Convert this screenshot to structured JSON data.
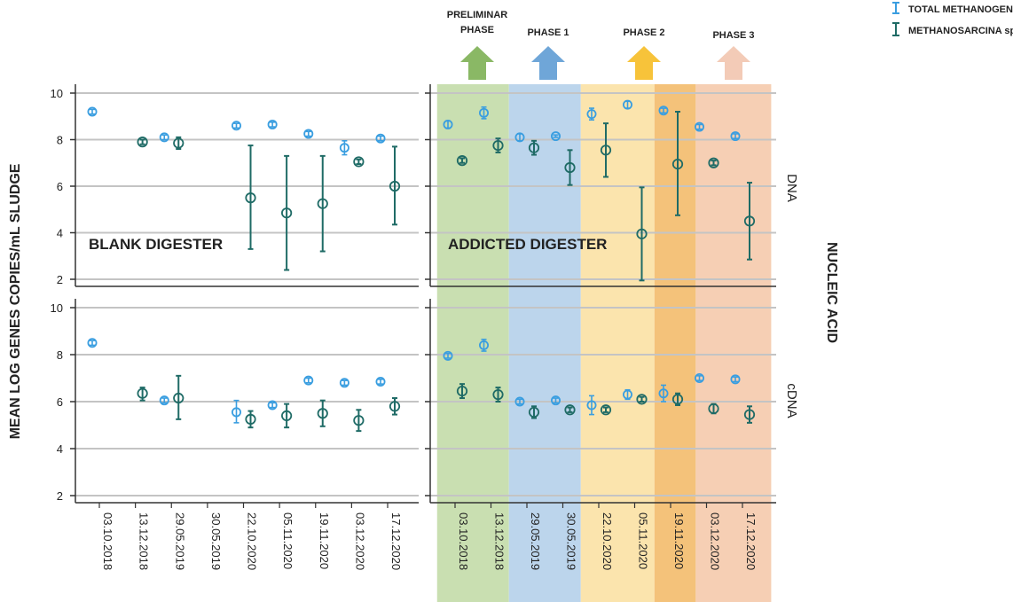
{
  "colors": {
    "total_methanogens": "#3a9ee0",
    "methanosarcina": "#1f6b66",
    "preliminar": "#c9dfb1",
    "phase1": "#bcd5ec",
    "phase2": "#fbe4ad",
    "phase2b": "#f4c27a",
    "phase3": "#f6cfb4",
    "arrow_preliminar": "#8ab865",
    "arrow_phase1": "#6fa6d8",
    "arrow_phase2": "#f7c33a",
    "arrow_phase3": "#f3cbb7"
  },
  "legend": {
    "total_methanogens": "TOTAL METHANOGENS",
    "methanosarcina": "METHANOSARCINA spp."
  },
  "phases": {
    "preliminar_line1": "PRELIMINAR",
    "preliminar_line2": "PHASE",
    "phase1": "PHASE 1",
    "phase2": "PHASE 2",
    "phase3": "PHASE 3"
  },
  "panel_labels": {
    "blank": "BLANK DIGESTER",
    "addicted": "ADDICTED DIGESTER"
  },
  "strip_labels": {
    "dna": "DNA",
    "cdna": "cDNA"
  },
  "axis": {
    "y_title": "MEAN LOG GENES COPIES/mL SLUDGE",
    "right_title": "NUCLEIC ACID"
  },
  "chart_data": {
    "type": "scatter",
    "subtype": "error-bar panel plot",
    "ylim": [
      2,
      10
    ],
    "yticks": [
      2,
      4,
      6,
      8,
      10
    ],
    "x_dates": [
      "03.10.2018",
      "13.12.2018",
      "29.05.2019",
      "30.05.2019",
      "22.10.2020",
      "05.11.2020",
      "19.11.2020",
      "03.12.2020",
      "17.12.2020"
    ],
    "panels": [
      {
        "column": "BLANK DIGESTER",
        "row": "DNA",
        "series": [
          {
            "name": "TOTAL METHANOGENS",
            "x": [
              "03.10.2018",
              "29.05.2019",
              "22.10.2020",
              "05.11.2020",
              "19.11.2020",
              "03.12.2020",
              "17.12.2020"
            ],
            "mean": [
              9.2,
              8.1,
              8.6,
              8.65,
              8.25,
              7.65,
              8.05
            ],
            "low": [
              9.1,
              8.0,
              8.5,
              8.55,
              8.15,
              7.35,
              7.95
            ],
            "high": [
              9.3,
              8.2,
              8.7,
              8.75,
              8.35,
              7.95,
              8.15
            ]
          },
          {
            "name": "METHANOSARCINA spp.",
            "x": [
              "13.12.2018",
              "29.05.2019",
              "22.10.2020",
              "05.11.2020",
              "19.11.2020",
              "03.12.2020",
              "17.12.2020"
            ],
            "mean": [
              7.9,
              7.85,
              5.5,
              4.85,
              5.25,
              7.05,
              6.0
            ],
            "low": [
              7.8,
              7.6,
              3.3,
              2.4,
              3.2,
              6.95,
              4.35
            ],
            "high": [
              8.0,
              8.1,
              7.75,
              7.3,
              7.3,
              7.15,
              7.7
            ]
          }
        ]
      },
      {
        "column": "ADDICTED DIGESTER",
        "row": "DNA",
        "series": [
          {
            "name": "TOTAL METHANOGENS",
            "x": [
              "03.10.2018",
              "13.12.2018",
              "29.05.2019",
              "30.05.2019",
              "22.10.2020",
              "05.11.2020",
              "19.11.2020",
              "03.12.2020",
              "17.12.2020"
            ],
            "mean": [
              8.65,
              9.15,
              8.1,
              8.15,
              9.1,
              9.5,
              9.25,
              8.55,
              8.15
            ],
            "low": [
              8.5,
              8.9,
              7.95,
              8.1,
              8.85,
              9.35,
              9.15,
              8.45,
              8.05
            ],
            "high": [
              8.8,
              9.4,
              8.25,
              8.2,
              9.35,
              9.65,
              9.35,
              8.65,
              8.25
            ]
          },
          {
            "name": "METHANOSARCINA spp.",
            "x": [
              "03.10.2018",
              "13.12.2018",
              "29.05.2019",
              "30.05.2019",
              "22.10.2020",
              "05.11.2020",
              "19.11.2020",
              "03.12.2020",
              "17.12.2020"
            ],
            "mean": [
              7.1,
              7.75,
              7.65,
              6.8,
              7.55,
              3.95,
              6.95,
              7.0,
              4.5
            ],
            "low": [
              7.0,
              7.45,
              7.35,
              6.05,
              6.4,
              1.95,
              4.75,
              6.9,
              2.85
            ],
            "high": [
              7.2,
              8.05,
              7.95,
              7.55,
              8.7,
              5.95,
              9.2,
              7.1,
              6.15
            ]
          }
        ]
      },
      {
        "column": "BLANK DIGESTER",
        "row": "cDNA",
        "series": [
          {
            "name": "TOTAL METHANOGENS",
            "x": [
              "03.10.2018",
              "29.05.2019",
              "22.10.2020",
              "05.11.2020",
              "19.11.2020",
              "03.12.2020",
              "17.12.2020"
            ],
            "mean": [
              8.5,
              6.05,
              5.55,
              5.85,
              6.9,
              6.8,
              6.85
            ],
            "low": [
              8.4,
              5.95,
              5.1,
              5.75,
              6.8,
              6.7,
              6.75
            ],
            "high": [
              8.6,
              6.15,
              6.05,
              5.95,
              7.0,
              6.9,
              6.95
            ]
          },
          {
            "name": "METHANOSARCINA spp.",
            "x": [
              "13.12.2018",
              "29.05.2019",
              "22.10.2020",
              "05.11.2020",
              "19.11.2020",
              "03.12.2020",
              "17.12.2020"
            ],
            "mean": [
              6.35,
              6.15,
              5.25,
              5.4,
              5.5,
              5.2,
              5.8
            ],
            "low": [
              6.05,
              5.25,
              4.9,
              4.9,
              4.95,
              4.75,
              5.45
            ],
            "high": [
              6.6,
              7.1,
              5.6,
              5.9,
              6.05,
              5.65,
              6.15
            ]
          }
        ]
      },
      {
        "column": "ADDICTED DIGESTER",
        "row": "cDNA",
        "series": [
          {
            "name": "TOTAL METHANOGENS",
            "x": [
              "03.10.2018",
              "13.12.2018",
              "29.05.2019",
              "30.05.2019",
              "22.10.2020",
              "05.11.2020",
              "19.11.2020",
              "03.12.2020",
              "17.12.2020"
            ],
            "mean": [
              7.95,
              8.4,
              6.0,
              6.05,
              5.85,
              6.3,
              6.35,
              7.0,
              6.95
            ],
            "low": [
              7.85,
              8.15,
              5.9,
              5.95,
              5.45,
              6.1,
              6.0,
              6.9,
              6.85
            ],
            "high": [
              8.05,
              8.65,
              6.1,
              6.15,
              6.25,
              6.5,
              6.7,
              7.1,
              7.05
            ]
          },
          {
            "name": "METHANOSARCINA spp.",
            "x": [
              "03.10.2018",
              "13.12.2018",
              "29.05.2019",
              "30.05.2019",
              "22.10.2020",
              "05.11.2020",
              "19.11.2020",
              "03.12.2020",
              "17.12.2020"
            ],
            "mean": [
              6.45,
              6.3,
              5.55,
              5.65,
              5.65,
              6.1,
              6.1,
              5.7,
              5.45
            ],
            "low": [
              6.15,
              6.0,
              5.3,
              5.55,
              5.55,
              6.0,
              5.85,
              5.5,
              5.1
            ],
            "high": [
              6.75,
              6.6,
              5.8,
              5.75,
              5.75,
              6.2,
              6.35,
              5.9,
              5.8
            ]
          }
        ]
      }
    ]
  }
}
